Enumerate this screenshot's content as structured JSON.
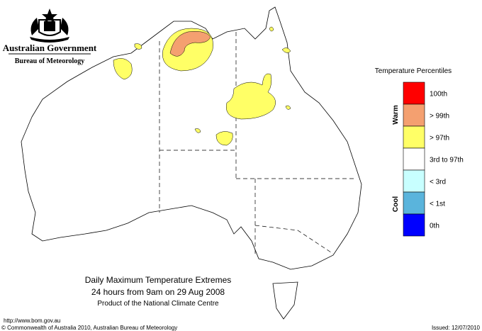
{
  "header": {
    "government": "Australian Government",
    "bureau": "Bureau of Meteorology"
  },
  "legend": {
    "title": "Temperature Percentiles",
    "warm": "Warm",
    "cool": "Cool",
    "items": [
      {
        "label": "100th",
        "color": "#ff0000"
      },
      {
        "label": "> 99th",
        "color": "#f4a070"
      },
      {
        "label": "> 97th",
        "color": "#ffff66"
      },
      {
        "label": "3rd to 97th",
        "color": "#ffffff"
      },
      {
        "label": "< 3rd",
        "color": "#c8ffff"
      },
      {
        "label": "< 1st",
        "color": "#5ab4dc"
      },
      {
        "label": "0th",
        "color": "#0000ff"
      }
    ]
  },
  "caption": {
    "title": "Daily Maximum Temperature Extremes",
    "period": "24 hours from 9am on 29 Aug 2008",
    "product": "Product of the National Climate Centre"
  },
  "footer": {
    "url": "http://www.bom.gov.au",
    "copyright": "© Commonwealth of Australia 2010, Australian Bureau of Meteorology",
    "issued": "Issued: 12/07/2010"
  }
}
